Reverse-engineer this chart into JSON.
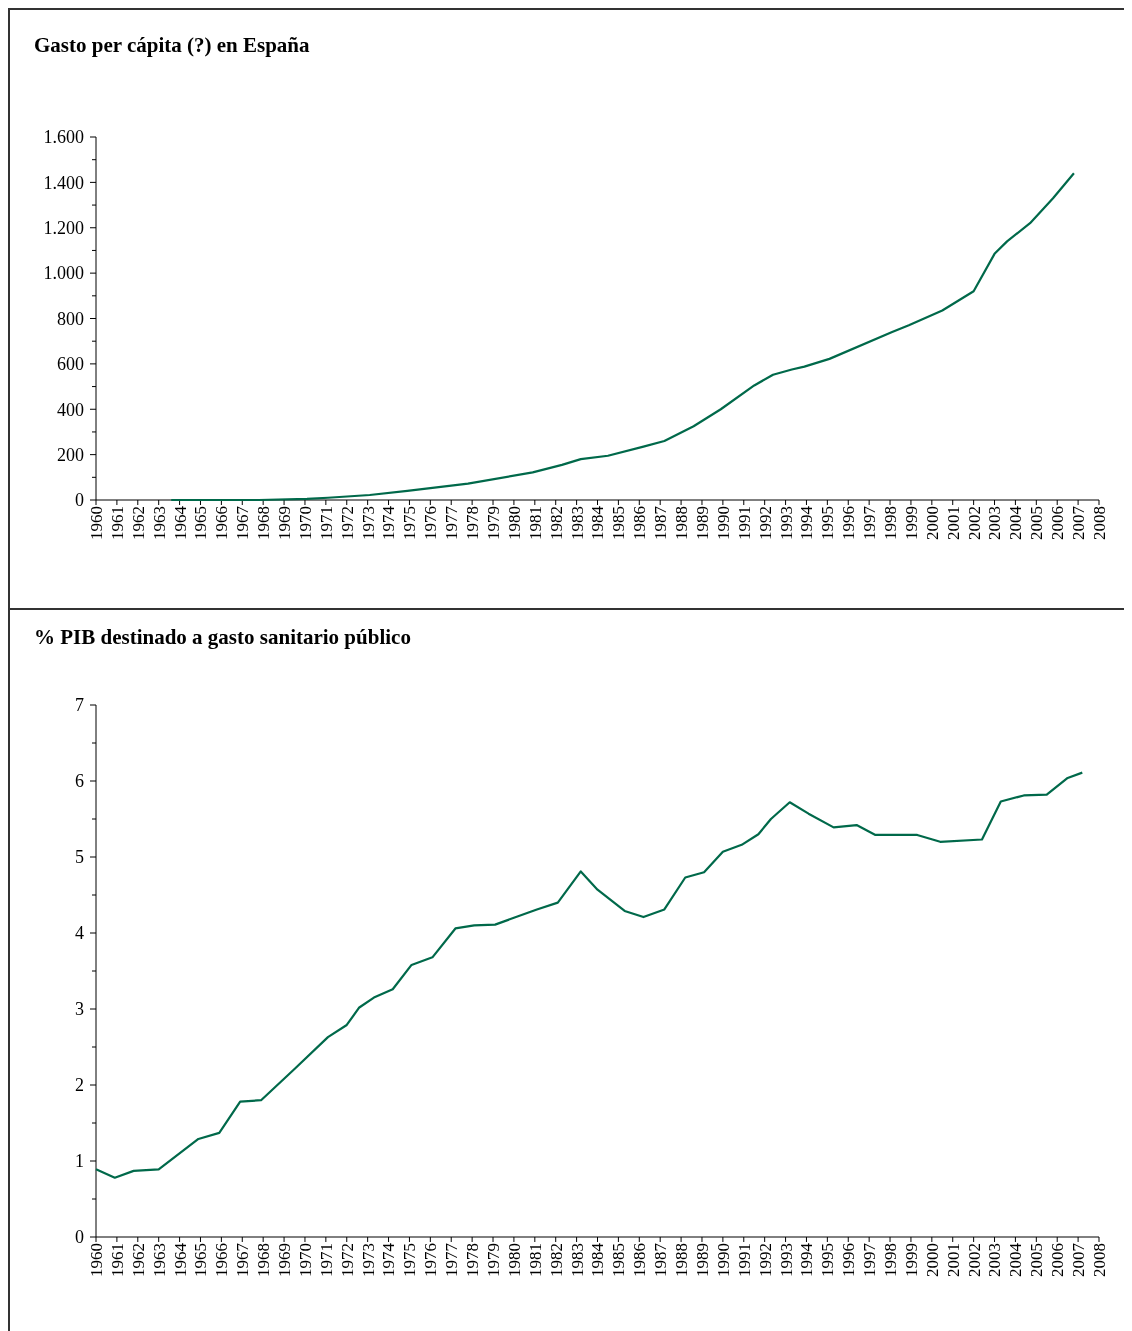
{
  "chart_data": [
    {
      "type": "line",
      "title": "Gasto per cápita (?) en España",
      "xlim": [
        1960,
        2008
      ],
      "xticks": [
        1960,
        1961,
        1962,
        1963,
        1964,
        1965,
        1966,
        1967,
        1968,
        1969,
        1970,
        1971,
        1972,
        1973,
        1974,
        1975,
        1976,
        1977,
        1978,
        1979,
        1980,
        1981,
        1982,
        1983,
        1984,
        1985,
        1986,
        1987,
        1988,
        1989,
        1990,
        1991,
        1992,
        1993,
        1994,
        1995,
        1996,
        1997,
        1998,
        1999,
        2000,
        2001,
        2002,
        2003,
        2004,
        2005,
        2006,
        2007,
        2008
      ],
      "ylim": [
        0,
        1600
      ],
      "yticks": [
        0,
        {
          "value": 100,
          "label": null
        },
        200,
        {
          "value": 300,
          "label": null
        },
        400,
        {
          "value": 500,
          "label": null
        },
        600,
        {
          "value": 700,
          "label": null
        },
        800,
        {
          "value": 900,
          "label": null
        },
        {
          "value": 1000,
          "label": "1.000"
        },
        {
          "value": 1100,
          "label": null
        },
        {
          "value": 1200,
          "label": "1.200"
        },
        {
          "value": 1300,
          "label": null
        },
        {
          "value": 1400,
          "label": "1.400"
        },
        {
          "value": 1500,
          "label": null
        },
        {
          "value": 1600,
          "label": "1.600"
        }
      ],
      "grid": false,
      "marker": "none",
      "line_style": "solid",
      "series": [
        {
          "color": "#00694a",
          "x": [
            1963.6,
            1967.8,
            1970.1,
            1971.1,
            1973.1,
            1974.9,
            1977.8,
            1980.9,
            1982.3,
            1983.2,
            1984.5,
            1986.2,
            1987.2,
            1988.6,
            1989.9,
            1991.5,
            1992.4,
            1993.3,
            1993.9,
            1995.1,
            1998.1,
            1998.9,
            2000.5,
            2002.0,
            2003.0,
            2003.6,
            2004.7,
            2005.8,
            2006.8
          ],
          "values": [
            0,
            0,
            5,
            10,
            22,
            40,
            72,
            122,
            155,
            180,
            195,
            235,
            260,
            325,
            400,
            505,
            552,
            575,
            588,
            622,
            740,
            770,
            835,
            920,
            1085,
            1140,
            1220,
            1330,
            1440
          ]
        }
      ]
    },
    {
      "type": "line",
      "title": "% PIB destinado a gasto sanitario público",
      "xlim": [
        1960,
        2008
      ],
      "xticks": [
        1960,
        1961,
        1962,
        1963,
        1964,
        1965,
        1966,
        1967,
        1968,
        1969,
        1970,
        1971,
        1972,
        1973,
        1974,
        1975,
        1976,
        1977,
        1978,
        1979,
        1980,
        1981,
        1982,
        1983,
        1984,
        1985,
        1986,
        1987,
        1988,
        1989,
        1990,
        1991,
        1992,
        1993,
        1994,
        1995,
        1996,
        1997,
        1998,
        1999,
        2000,
        2001,
        2002,
        2003,
        2004,
        2005,
        2006,
        2007,
        2008
      ],
      "ylim": [
        0,
        7
      ],
      "yticks": [
        0,
        {
          "value": 0.5,
          "label": null
        },
        1,
        {
          "value": 1.5,
          "label": null
        },
        2,
        {
          "value": 2.5,
          "label": null
        },
        3,
        {
          "value": 3.5,
          "label": null
        },
        4,
        {
          "value": 4.5,
          "label": null
        },
        5,
        {
          "value": 5.5,
          "label": null
        },
        6,
        {
          "value": 6.5,
          "label": null
        },
        7
      ],
      "grid": false,
      "marker": "none",
      "line_style": "solid",
      "series": [
        {
          "color": "#00694a",
          "x": [
            1960,
            1960.9,
            1961.8,
            1963.0,
            1964.9,
            1965.9,
            1966.9,
            1967.9,
            1969.5,
            1971.1,
            1972.0,
            1972.6,
            1973.3,
            1974.2,
            1975.1,
            1976.1,
            1977.2,
            1978.1,
            1979.1,
            1981.1,
            1982.1,
            1983.2,
            1984.0,
            1985.3,
            1986.2,
            1987.2,
            1988.2,
            1989.1,
            1990.0,
            1990.9,
            1991.7,
            1992.3,
            1993.2,
            1994.1,
            1995.3,
            1996.4,
            1997.3,
            1999.3,
            2000.4,
            2002.4,
            2003.3,
            2004.4,
            2005.5,
            2006.5,
            2007.2
          ],
          "values": [
            0.89,
            0.78,
            0.87,
            0.89,
            1.29,
            1.37,
            1.78,
            1.8,
            2.21,
            2.63,
            2.79,
            3.02,
            3.15,
            3.26,
            3.58,
            3.68,
            4.06,
            4.1,
            4.11,
            4.31,
            4.4,
            4.81,
            4.57,
            4.29,
            4.21,
            4.31,
            4.73,
            4.8,
            5.07,
            5.16,
            5.3,
            5.5,
            5.72,
            5.57,
            5.39,
            5.42,
            5.29,
            5.29,
            5.2,
            5.23,
            5.73,
            5.81,
            5.82,
            6.04,
            6.11
          ]
        }
      ]
    }
  ]
}
